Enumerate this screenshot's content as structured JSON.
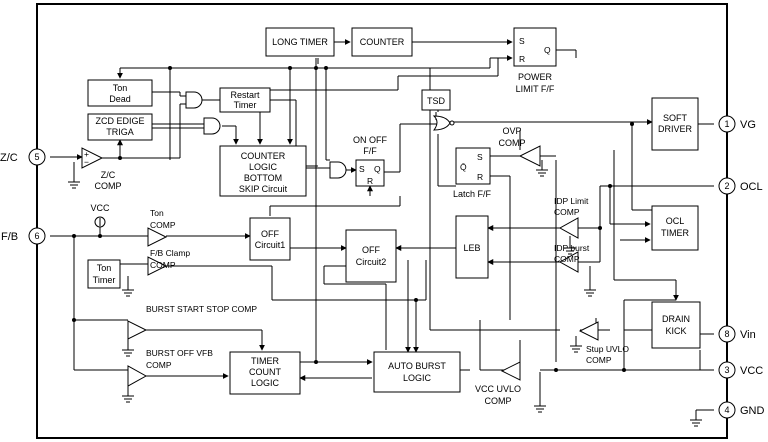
{
  "blocks": {
    "long_timer": "LONG TIMER",
    "counter": "COUNTER",
    "ton_dead": [
      "Ton",
      "Dead"
    ],
    "restart_timer": [
      "Restart",
      "Timer"
    ],
    "zcd_edge": [
      "ZCD EDIGE",
      "TRIGA"
    ],
    "counter_logic": [
      "COUNTER",
      "LOGIC",
      "BOTTOM",
      "SKIP Circuit"
    ],
    "tsd": "TSD",
    "soft_driver": [
      "SOFT",
      "DRIVER"
    ],
    "ocl_timer": [
      "OCL",
      "TIMER"
    ],
    "off_circuit1": [
      "OFF",
      "Circuit1"
    ],
    "off_circuit2": [
      "OFF",
      "Circuit2"
    ],
    "leb": "LEB",
    "ton_timer": [
      "Ton",
      "Timer"
    ],
    "timer_count_logic": [
      "TIMER",
      "COUNT",
      "LOGIC"
    ],
    "auto_burst_logic": [
      "AUTO BURST",
      "LOGIC"
    ],
    "drain_kick": [
      "DRAIN",
      "KICK"
    ]
  },
  "flipflops": {
    "power_limit": {
      "s": "S",
      "r": "R",
      "q": "Q",
      "label": [
        "POWER",
        "LIMIT F/F"
      ]
    },
    "on_off": {
      "s": "S",
      "r": "R",
      "q": "Q",
      "label": [
        "ON OFF",
        "F/F"
      ]
    },
    "latch": {
      "s": "S",
      "r": "R",
      "q": "Q̄",
      "label": "Latch F/F"
    }
  },
  "comparators": {
    "zc_comp": [
      "Z/C",
      "COMP"
    ],
    "ovp_comp": [
      "OVP",
      "COMP"
    ],
    "idp_limit_comp": [
      "IDP Limit",
      "COMP"
    ],
    "idp_burst_comp": [
      "IDP burst",
      "COMP"
    ],
    "ton_comp": [
      "Ton",
      "COMP"
    ],
    "fb_clamp_comp": [
      "F/B Clamp",
      "COMP"
    ],
    "burst_start_stop_comp": "BURST START STOP COMP",
    "burst_off_vfb_comp": [
      "BURST OFF VFB",
      "COMP"
    ],
    "stup_uvlo_comp": [
      "Stup UVLO",
      "COMP"
    ],
    "vcc_uvlo_comp": [
      "VCC UVLO",
      "COMP"
    ]
  },
  "pins": {
    "zc": {
      "num": "5",
      "name": "Z/C"
    },
    "fb": {
      "num": "6",
      "name": "F/B"
    },
    "vg": {
      "num": "1",
      "name": "VG"
    },
    "ocl": {
      "num": "2",
      "name": "OCL"
    },
    "vin": {
      "num": "8",
      "name": "Vin"
    },
    "vcc": {
      "num": "3",
      "name": "VCC"
    },
    "gnd": {
      "num": "4",
      "name": "GND"
    }
  },
  "vcc_source": "VCC"
}
